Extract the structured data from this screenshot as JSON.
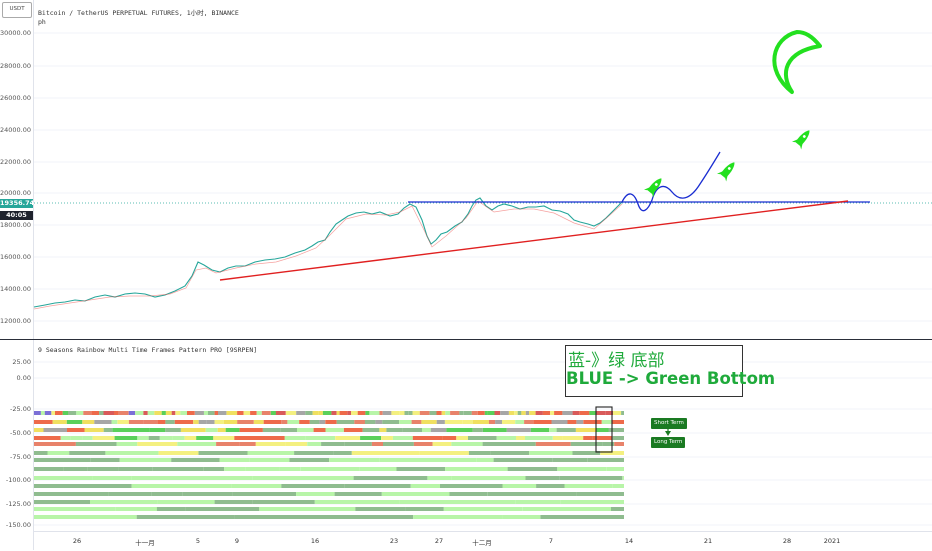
{
  "chart": {
    "title": "Bitcoin / TetherUS PERPETUAL FUTURES, 1小时, BINANCE",
    "subtitle": "ph",
    "currency_badge": "USDT",
    "current_price": "19356.74",
    "countdown": "40:05",
    "y_ticks": [
      "30000.00",
      "28000.00",
      "26000.00",
      "24000.00",
      "22000.00",
      "20000.00",
      "18000.00",
      "16000.00",
      "14000.00",
      "12000.00"
    ]
  },
  "indicator": {
    "title": "9 Seasons Rainbow Multi Time Frames Pattern PRO [9SRPEN]",
    "y_ticks": [
      "25.00",
      "0.00",
      "-25.00",
      "-50.00",
      "-75.00",
      "-100.00",
      "-125.00",
      "-150.00"
    ],
    "short_term_label": "Short Term",
    "long_term_label": "Long Term"
  },
  "annotation": {
    "line1": "蓝-》绿 底部",
    "line2": "BLUE -> Green Bottom"
  },
  "x_ticks": [
    "26",
    "十一月",
    "5",
    "9",
    "16",
    "23",
    "27",
    "十二月",
    "7",
    "14",
    "21",
    "28",
    "2021"
  ],
  "colors": {
    "bull": "#1faa3b",
    "price_line": "#26a69a",
    "resistance": "#1a2dd1",
    "support": "#e02020",
    "rocket": "#23e01f"
  }
}
